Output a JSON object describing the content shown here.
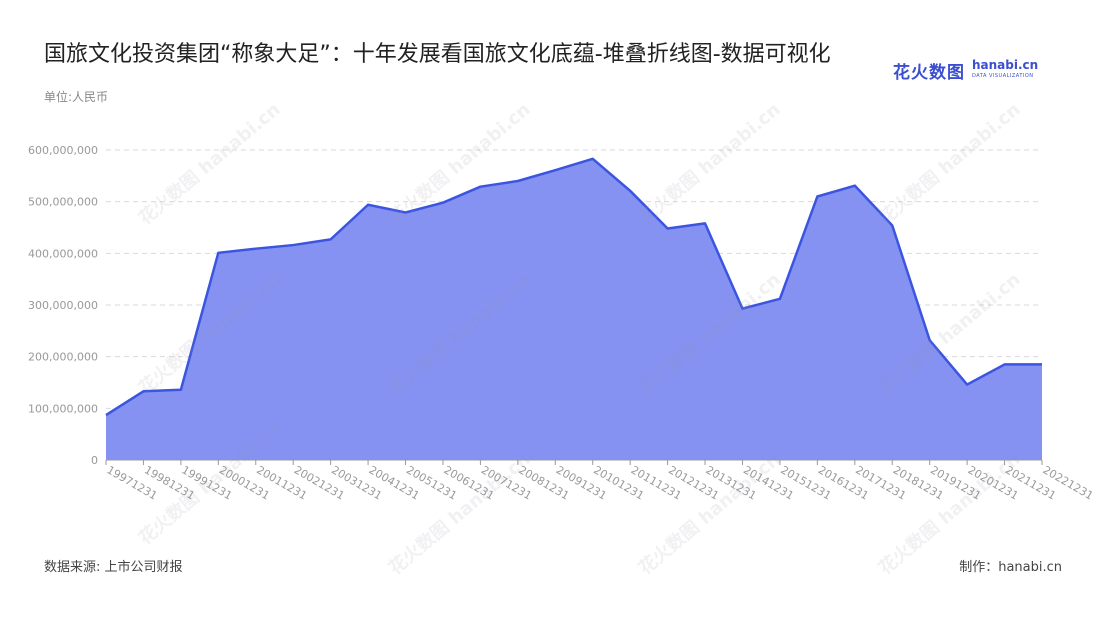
{
  "header": {
    "title": "国旅文化投资集团“称象大足”：十年发展看国旅文化底蕴-堆叠折线图-数据可视化",
    "unit": "单位:人民币"
  },
  "logo": {
    "cn": "花火数图",
    "en": "hanabi.cn",
    "en_sub": "DATA VISUALIZATION",
    "watermark": "花火数图 hanabi.cn"
  },
  "footer": {
    "source": "数据来源: 上市公司财报",
    "credit": "制作：hanabi.cn"
  },
  "colors": {
    "line": "#3b55e0",
    "fill": "#8592f2",
    "grid": "#d9d9d9",
    "axis": "#999999",
    "tick_text": "#999999"
  },
  "chart_data": {
    "type": "area",
    "x": [
      "19971231",
      "19981231",
      "19991231",
      "20001231",
      "20011231",
      "20021231",
      "20031231",
      "20041231",
      "20051231",
      "20061231",
      "20071231",
      "20081231",
      "20091231",
      "20101231",
      "20111231",
      "20121231",
      "20131231",
      "20141231",
      "20151231",
      "20161231",
      "20171231",
      "20181231",
      "20191231",
      "20201231",
      "20211231",
      "20221231"
    ],
    "series": [
      {
        "values": [
          87000000,
          133000000,
          136000000,
          401000000,
          409000000,
          416000000,
          427000000,
          494000000,
          479000000,
          498000000,
          529000000,
          540000000,
          561000000,
          583000000,
          521000000,
          448000000,
          458000000,
          293000000,
          312000000,
          510000000,
          531000000,
          454000000,
          232000000,
          146000000,
          185000000,
          185000000
        ]
      }
    ],
    "ylim": [
      0,
      600000000
    ],
    "yticks": [
      0,
      100000000,
      200000000,
      300000000,
      400000000,
      500000000,
      600000000
    ],
    "ytick_labels": [
      "0",
      "100,000,000",
      "200,000,000",
      "300,000,000",
      "400,000,000",
      "500,000,000",
      "600,000,000"
    ],
    "grid": true,
    "legend": "none",
    "xlabel": "",
    "ylabel": ""
  }
}
